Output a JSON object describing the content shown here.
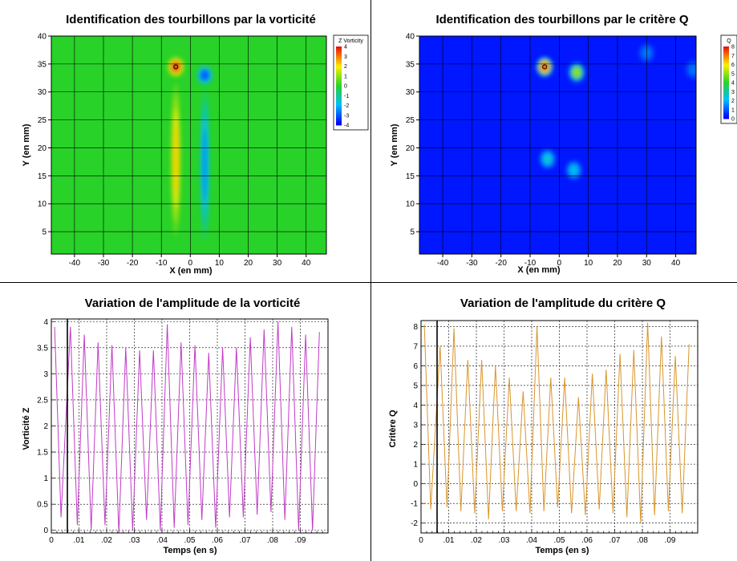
{
  "colors": {
    "line_vorticity": "#c23ac8",
    "line_q": "#d9952b",
    "grid": "#000000",
    "marker": "#000000"
  },
  "chart_data": [
    {
      "type": "heatmap",
      "title": "Identification des tourbillons par la vorticité",
      "xlabel": "X (en mm)",
      "ylabel": "Y (en mm)",
      "xlim": [
        -48,
        47
      ],
      "ylim": [
        1,
        40
      ],
      "xticks": [
        -40,
        -30,
        -20,
        -10,
        0,
        10,
        20,
        30,
        40
      ],
      "yticks": [
        5,
        10,
        15,
        20,
        25,
        30,
        35,
        40
      ],
      "grid": true,
      "colormap": "rainbow",
      "legend": {
        "title": "Z Vorticity",
        "placement": "right",
        "min": -4,
        "max": 4,
        "levels": [
          4,
          3,
          2,
          1,
          0,
          -1,
          -2,
          -3,
          -4
        ]
      },
      "structures": [
        {
          "x": -5,
          "y": 34.5,
          "value": 4
        },
        {
          "x": -5,
          "y": 18,
          "value": 2.3
        },
        {
          "x": 5,
          "y": 33,
          "value": -3.2
        },
        {
          "x": 5,
          "y": 17,
          "value": -2.4
        }
      ],
      "marker": {
        "x": -5,
        "y": 34.5
      }
    },
    {
      "type": "heatmap",
      "title": "Identification des tourbillons par le critère Q",
      "xlabel": "X (en mm)",
      "ylabel": "Y (en mm)",
      "xlim": [
        -48,
        47
      ],
      "ylim": [
        1,
        40
      ],
      "xticks": [
        -40,
        -30,
        -20,
        -10,
        0,
        10,
        20,
        30,
        40
      ],
      "yticks": [
        5,
        10,
        15,
        20,
        25,
        30,
        35,
        40
      ],
      "grid": true,
      "colormap": "rainbow",
      "legend": {
        "title": "Q",
        "placement": "right",
        "min": 0,
        "max": 8,
        "levels": [
          8,
          7,
          6,
          5,
          4,
          3,
          2,
          1,
          0
        ]
      },
      "structures": [
        {
          "x": -5,
          "y": 34.5,
          "value": 8
        },
        {
          "x": 6,
          "y": 33.5,
          "value": 5
        },
        {
          "x": -4,
          "y": 18,
          "value": 2.5
        },
        {
          "x": 5,
          "y": 16,
          "value": 2.2
        },
        {
          "x": 30,
          "y": 37,
          "value": 1.3
        },
        {
          "x": 46,
          "y": 34,
          "value": 1.2
        }
      ],
      "marker": {
        "x": -5,
        "y": 34.5
      }
    },
    {
      "type": "line",
      "title": "Variation de l'amplitude de la vorticité",
      "xlabel": "Temps (en s)",
      "ylabel": "Vorticité Z",
      "xlim": [
        0,
        0.1
      ],
      "ylim": [
        -0.05,
        4.05
      ],
      "xticks": [
        0,
        0.01,
        0.02,
        0.03,
        0.04,
        0.05,
        0.06,
        0.07,
        0.08,
        0.09
      ],
      "yticks": [
        0,
        0.5,
        1,
        1.5,
        2,
        2.5,
        3,
        3.5,
        4
      ],
      "grid": true,
      "current_time": 0.0058,
      "series": [
        {
          "peaks": [
            [
              0.0012,
              3.9
            ],
            [
              0.0069,
              3.9
            ],
            [
              0.0119,
              3.75
            ],
            [
              0.0169,
              3.6
            ],
            [
              0.0219,
              3.55
            ],
            [
              0.0269,
              3.5
            ],
            [
              0.0319,
              3.45
            ],
            [
              0.0369,
              3.45
            ],
            [
              0.0419,
              3.95
            ],
            [
              0.0469,
              3.6
            ],
            [
              0.0519,
              3.55
            ],
            [
              0.0569,
              3.4
            ],
            [
              0.0619,
              3.5
            ],
            [
              0.0669,
              3.5
            ],
            [
              0.0719,
              3.7
            ],
            [
              0.0769,
              3.85
            ],
            [
              0.0819,
              4.0
            ],
            [
              0.0869,
              3.9
            ],
            [
              0.0919,
              3.75
            ],
            [
              0.0969,
              3.8
            ]
          ],
          "troughs": [
            [
              0.0035,
              0.25
            ],
            [
              0.0094,
              0.1
            ],
            [
              0.0144,
              0.0
            ],
            [
              0.0194,
              0.1
            ],
            [
              0.0244,
              -0.05
            ],
            [
              0.0294,
              0.0
            ],
            [
              0.0344,
              0.2
            ],
            [
              0.0394,
              0.0
            ],
            [
              0.0444,
              0.05
            ],
            [
              0.0494,
              0.1
            ],
            [
              0.0544,
              0.2
            ],
            [
              0.0594,
              0.05
            ],
            [
              0.0644,
              0.25
            ],
            [
              0.0694,
              0.25
            ],
            [
              0.0744,
              0.3
            ],
            [
              0.0794,
              0.35
            ],
            [
              0.0844,
              0.2
            ],
            [
              0.0894,
              0.0
            ],
            [
              0.0944,
              0.0
            ]
          ]
        }
      ]
    },
    {
      "type": "line",
      "title": "Variation de l'amplitude du critère Q",
      "xlabel": "Temps (en s)",
      "ylabel": "Critère Q",
      "xlim": [
        0,
        0.1
      ],
      "ylim": [
        -2.5,
        8.3
      ],
      "xticks": [
        0,
        0.01,
        0.02,
        0.03,
        0.04,
        0.05,
        0.06,
        0.07,
        0.08,
        0.09
      ],
      "yticks": [
        -2,
        -1,
        0,
        1,
        2,
        3,
        4,
        5,
        6,
        7,
        8
      ],
      "grid": true,
      "current_time": 0.0058,
      "series": [
        {
          "peaks": [
            [
              0.0012,
              8.1
            ],
            [
              0.0069,
              7.0
            ],
            [
              0.0119,
              7.9
            ],
            [
              0.0169,
              6.3
            ],
            [
              0.0219,
              6.3
            ],
            [
              0.0269,
              6.0
            ],
            [
              0.0319,
              5.4
            ],
            [
              0.0369,
              4.7
            ],
            [
              0.0419,
              8.0
            ],
            [
              0.0469,
              5.4
            ],
            [
              0.0519,
              5.4
            ],
            [
              0.0569,
              4.4
            ],
            [
              0.0619,
              5.6
            ],
            [
              0.0669,
              5.8
            ],
            [
              0.0719,
              6.6
            ],
            [
              0.0769,
              6.8
            ],
            [
              0.0819,
              8.2
            ],
            [
              0.0869,
              7.5
            ],
            [
              0.0919,
              6.5
            ],
            [
              0.0969,
              7.1
            ]
          ],
          "troughs": [
            [
              0.0035,
              -1.3
            ],
            [
              0.0094,
              -1.2
            ],
            [
              0.0144,
              -1.4
            ],
            [
              0.0194,
              -1.5
            ],
            [
              0.0244,
              -1.8
            ],
            [
              0.0294,
              -1.4
            ],
            [
              0.0344,
              -1.4
            ],
            [
              0.0394,
              -1.5
            ],
            [
              0.0444,
              -1.4
            ],
            [
              0.0494,
              -1.2
            ],
            [
              0.0544,
              -1.5
            ],
            [
              0.0594,
              -1.6
            ],
            [
              0.0644,
              -1.3
            ],
            [
              0.0694,
              -1.5
            ],
            [
              0.0744,
              -1.7
            ],
            [
              0.0794,
              -2.0
            ],
            [
              0.0844,
              -1.6
            ],
            [
              0.0894,
              -1.4
            ],
            [
              0.0944,
              -1.5
            ]
          ]
        }
      ]
    }
  ]
}
